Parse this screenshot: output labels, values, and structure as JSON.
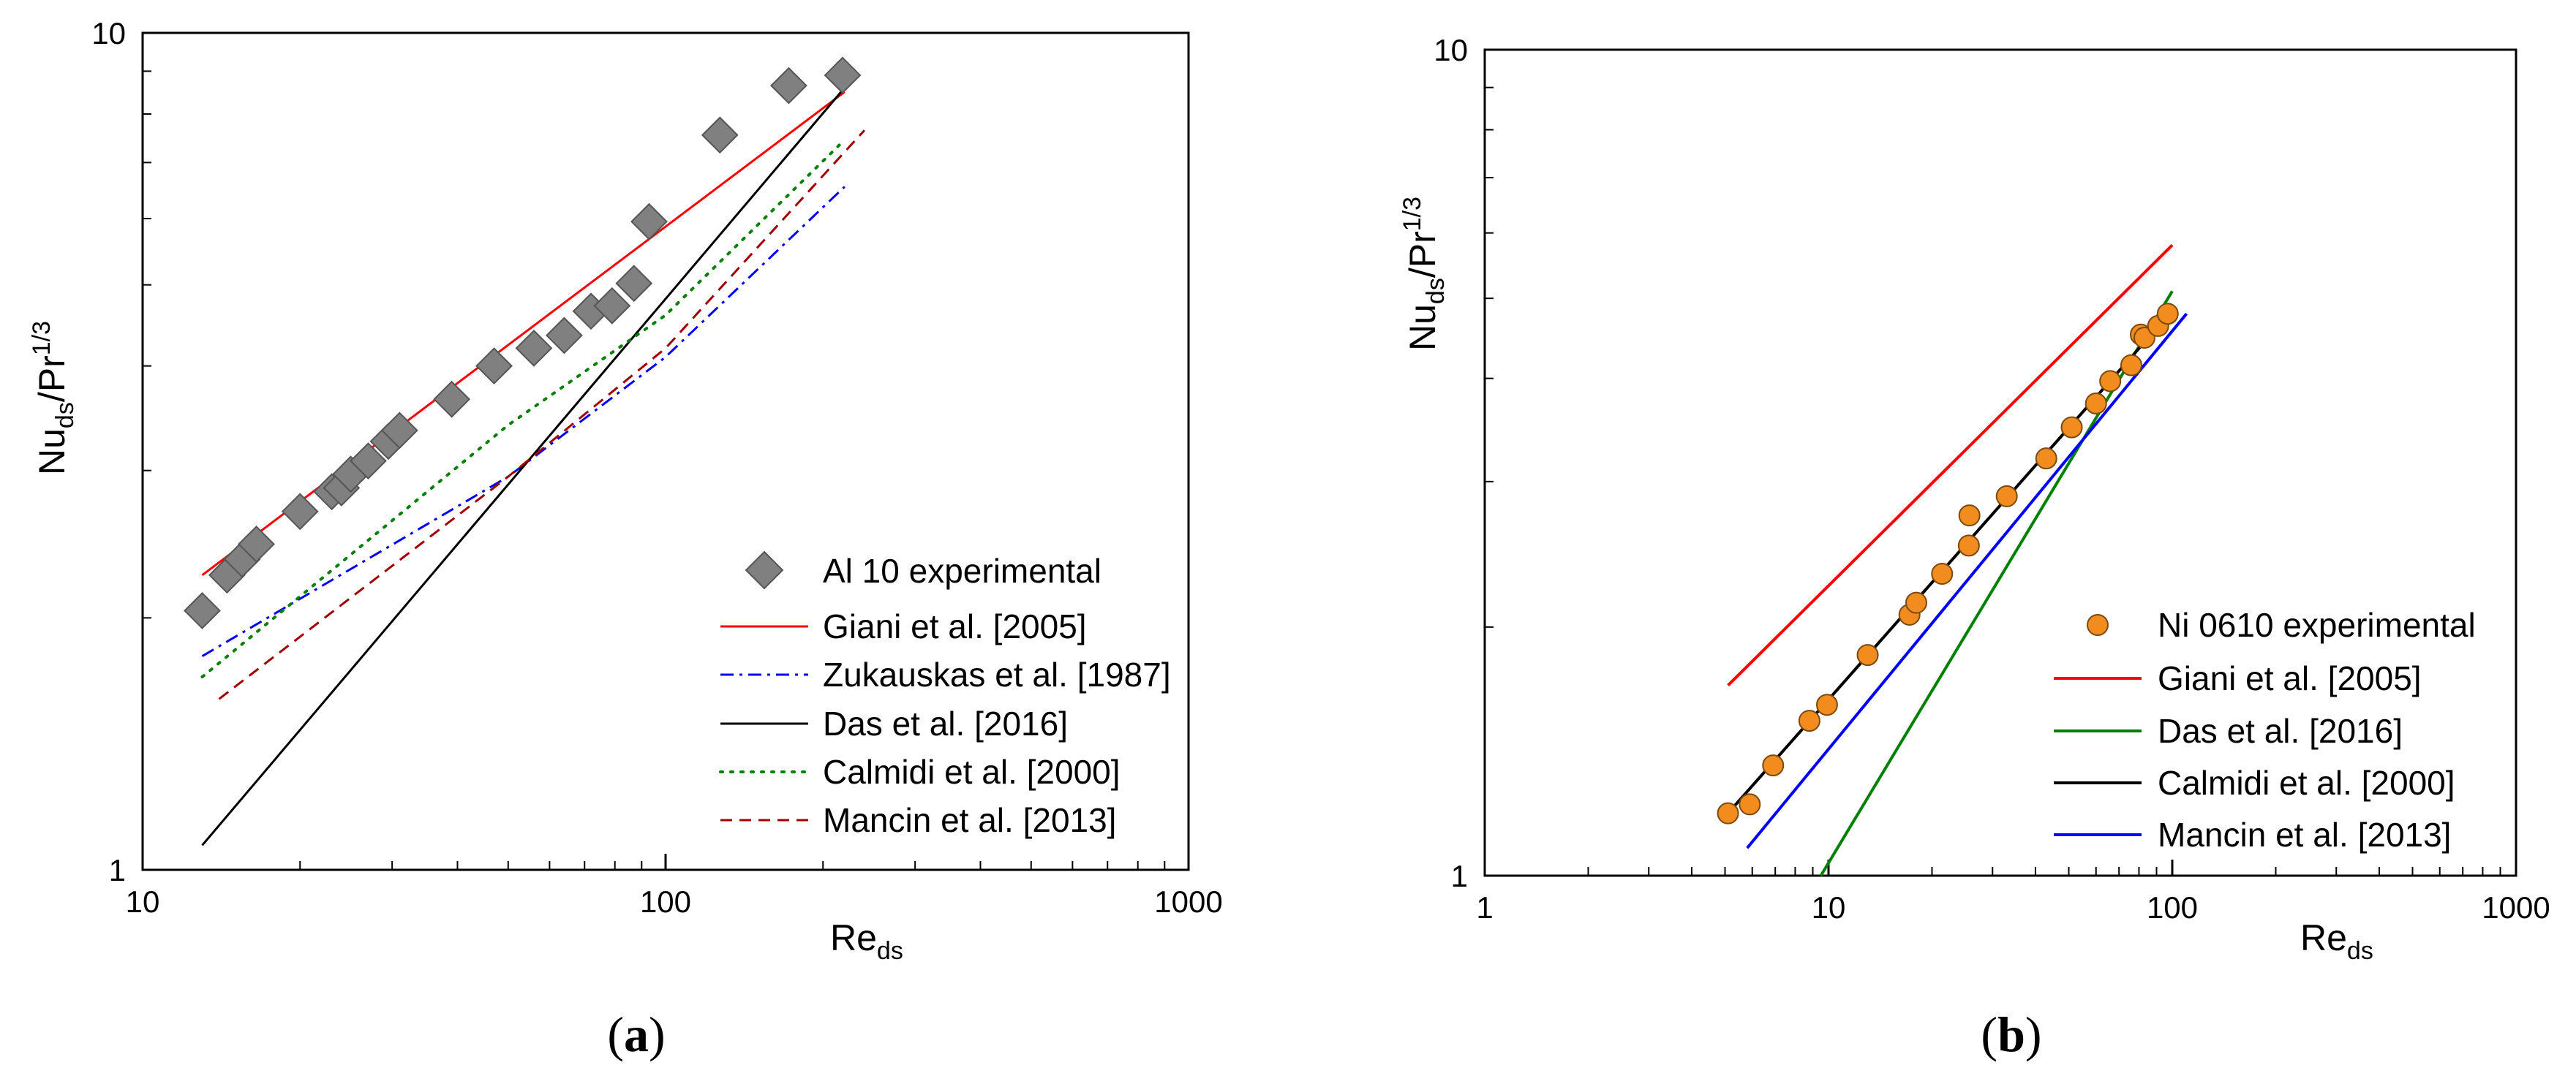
{
  "chart_data": [
    {
      "type": "scatter",
      "panel_label": "a",
      "xlabel": "Re",
      "xlabel_sub": "ds",
      "ylabel": "Nu",
      "ylabel_sub": "ds",
      "ylabel_mid": "/Pr",
      "ylabel_sup": "1/3",
      "xscale": "log",
      "yscale": "log",
      "xlim": [
        10,
        1000
      ],
      "ylim": [
        1,
        10
      ],
      "xticks": [
        "10",
        "100",
        "1000"
      ],
      "yticks": [
        "1",
        "10"
      ],
      "legend_position": "bottom-right",
      "series": [
        {
          "name": "Al 10 experimental",
          "kind": "marker",
          "marker": "diamond",
          "color": "#808080",
          "x": [
            13,
            14.5,
            15.5,
            16.5,
            20,
            23,
            24,
            25,
            27,
            29.5,
            31,
            39,
            47,
            56,
            64,
            72,
            79,
            87,
            93,
            127,
            172,
            218
          ],
          "y": [
            2.04,
            2.25,
            2.35,
            2.45,
            2.68,
            2.83,
            2.86,
            2.97,
            3.08,
            3.25,
            3.35,
            3.65,
            4.0,
            4.2,
            4.35,
            4.65,
            4.72,
            5.02,
            5.95,
            7.55,
            8.65,
            8.9
          ]
        },
        {
          "name": "Giani et al. [2005]",
          "kind": "line",
          "dash": "solid",
          "color": "#ff0000",
          "x": [
            13,
            220
          ],
          "y": [
            2.25,
            8.5
          ]
        },
        {
          "name": "Zukauskas et al. [1987]",
          "kind": "line",
          "dash": "dashdot",
          "color": "#0000ff",
          "x": [
            13,
            50,
            100,
            220
          ],
          "y": [
            1.8,
            2.95,
            4.1,
            6.55
          ]
        },
        {
          "name": "Das et al. [2016]",
          "kind": "line",
          "dash": "solid",
          "color": "#000000",
          "x": [
            13,
            220
          ],
          "y": [
            1.07,
            8.6
          ]
        },
        {
          "name": "Calmidi et al. [2000]",
          "kind": "line",
          "dash": "dotted",
          "color": "#008000",
          "x": [
            13,
            50,
            100,
            220
          ],
          "y": [
            1.7,
            3.4,
            4.6,
            7.45
          ]
        },
        {
          "name": "Mancin et al. [2013]",
          "kind": "line",
          "dash": "dashed",
          "color": "#a00000",
          "x": [
            14,
            50,
            100,
            240
          ],
          "y": [
            1.6,
            2.95,
            4.2,
            7.65
          ]
        }
      ]
    },
    {
      "type": "scatter",
      "panel_label": "b",
      "xlabel": "Re",
      "xlabel_sub": "ds",
      "ylabel": "Nu",
      "ylabel_sub": "ds",
      "ylabel_mid": "/Pr",
      "ylabel_sup": "1/3",
      "xscale": "log",
      "yscale": "log",
      "xlim": [
        1,
        1000
      ],
      "ylim": [
        1,
        10
      ],
      "xticks": [
        "1",
        "10",
        "100",
        "1000"
      ],
      "yticks": [
        "1",
        "10"
      ],
      "legend_position": "bottom-right",
      "series": [
        {
          "name": "Ni 0610 experimental",
          "kind": "marker",
          "marker": "circle",
          "color": "#f28c1e",
          "x": [
            5.1,
            5.9,
            6.9,
            8.8,
            9.9,
            13,
            17.2,
            18,
            21.4,
            25.6,
            25.7,
            33,
            43,
            51,
            60,
            66,
            76,
            81,
            83,
            91,
            97
          ],
          "y": [
            1.19,
            1.22,
            1.36,
            1.54,
            1.61,
            1.85,
            2.07,
            2.14,
            2.32,
            2.51,
            2.73,
            2.88,
            3.2,
            3.49,
            3.73,
            3.97,
            4.15,
            4.52,
            4.48,
            4.63,
            4.79
          ]
        },
        {
          "name": "Giani et al. [2005]",
          "kind": "line",
          "dash": "solid",
          "color": "#ff0000",
          "x": [
            5.1,
            100
          ],
          "y": [
            1.7,
            5.8
          ]
        },
        {
          "name": "Das et al. [2016]",
          "kind": "line",
          "dash": "solid",
          "color": "#008000",
          "x": [
            9.5,
            100
          ],
          "y": [
            1.0,
            5.1
          ]
        },
        {
          "name": "Calmidi et al. [2000]",
          "kind": "line",
          "dash": "solid",
          "color": "#000000",
          "x": [
            5.1,
            100
          ],
          "y": [
            1.19,
            4.83
          ]
        },
        {
          "name": "Mancin et al. [2013]",
          "kind": "line",
          "dash": "solid",
          "color": "#0000ff",
          "x": [
            5.8,
            110
          ],
          "y": [
            1.08,
            4.79
          ]
        }
      ]
    }
  ]
}
